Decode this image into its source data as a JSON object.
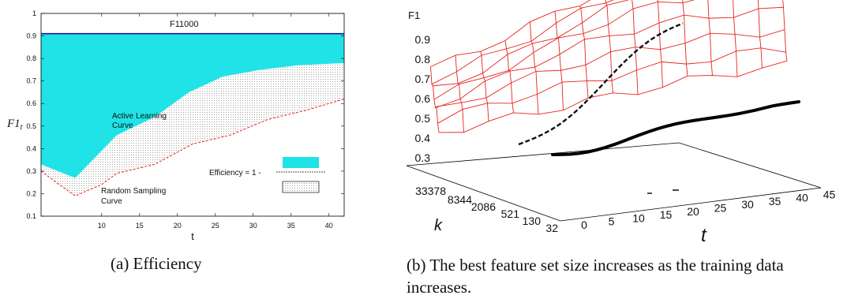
{
  "captions": {
    "a": "(a)  Efficiency",
    "b": "(b) The best feature set size increases as the training data increases."
  },
  "colors": {
    "active_fill": "#1fe3e6",
    "upper_line": "#1a1a8c",
    "random_line": "#e8231e",
    "mesh": "#e8231e"
  },
  "chart_data": [
    {
      "type": "area",
      "xlabel": "t",
      "ylabel": "F1",
      "ylabel_subscript": "t",
      "xlim": [
        2,
        42
      ],
      "ylim": [
        0.1,
        1
      ],
      "xticks": [
        10,
        15,
        20,
        25,
        30,
        35,
        40
      ],
      "yticks": [
        "0.1",
        "0.2",
        "0.3",
        "0.4",
        "0.5",
        "0.6",
        "0.7",
        "0.8",
        "0.9",
        "1"
      ],
      "upper_label_main": "F1",
      "upper_label_sub": "1000",
      "upper_value": 0.91,
      "active_label_line1": "Active Learning",
      "active_label_line2": "Curve",
      "random_label_line1": "Random Sampling",
      "random_label_line2": "Curve",
      "legend_text": "Efficiency =   1 -",
      "series": [
        {
          "name": "Active Learning Curve",
          "x": [
            2,
            6.5,
            12,
            17,
            21.5,
            26,
            31,
            36,
            42
          ],
          "y": [
            0.33,
            0.27,
            0.46,
            0.54,
            0.65,
            0.72,
            0.75,
            0.77,
            0.78
          ]
        },
        {
          "name": "Random Sampling Curve",
          "x": [
            2,
            4,
            6.5,
            10,
            12,
            17,
            22,
            27,
            32,
            37,
            42
          ],
          "y": [
            0.3,
            0.25,
            0.19,
            0.24,
            0.29,
            0.33,
            0.42,
            0.46,
            0.53,
            0.57,
            0.62
          ]
        }
      ]
    },
    {
      "type": "surface",
      "zlabel": "F1",
      "xlabel": "t",
      "ylabel": "k",
      "zticks": [
        "0.3",
        "0.4",
        "0.5",
        "0.6",
        "0.7",
        "0.8",
        "0.9"
      ],
      "xticks": [
        "0",
        "5",
        "10",
        "15",
        "20",
        "25",
        "30",
        "35",
        "40",
        "45"
      ],
      "kticks": [
        "33378",
        "8344",
        "2086",
        "521",
        "130",
        "32"
      ]
    }
  ]
}
